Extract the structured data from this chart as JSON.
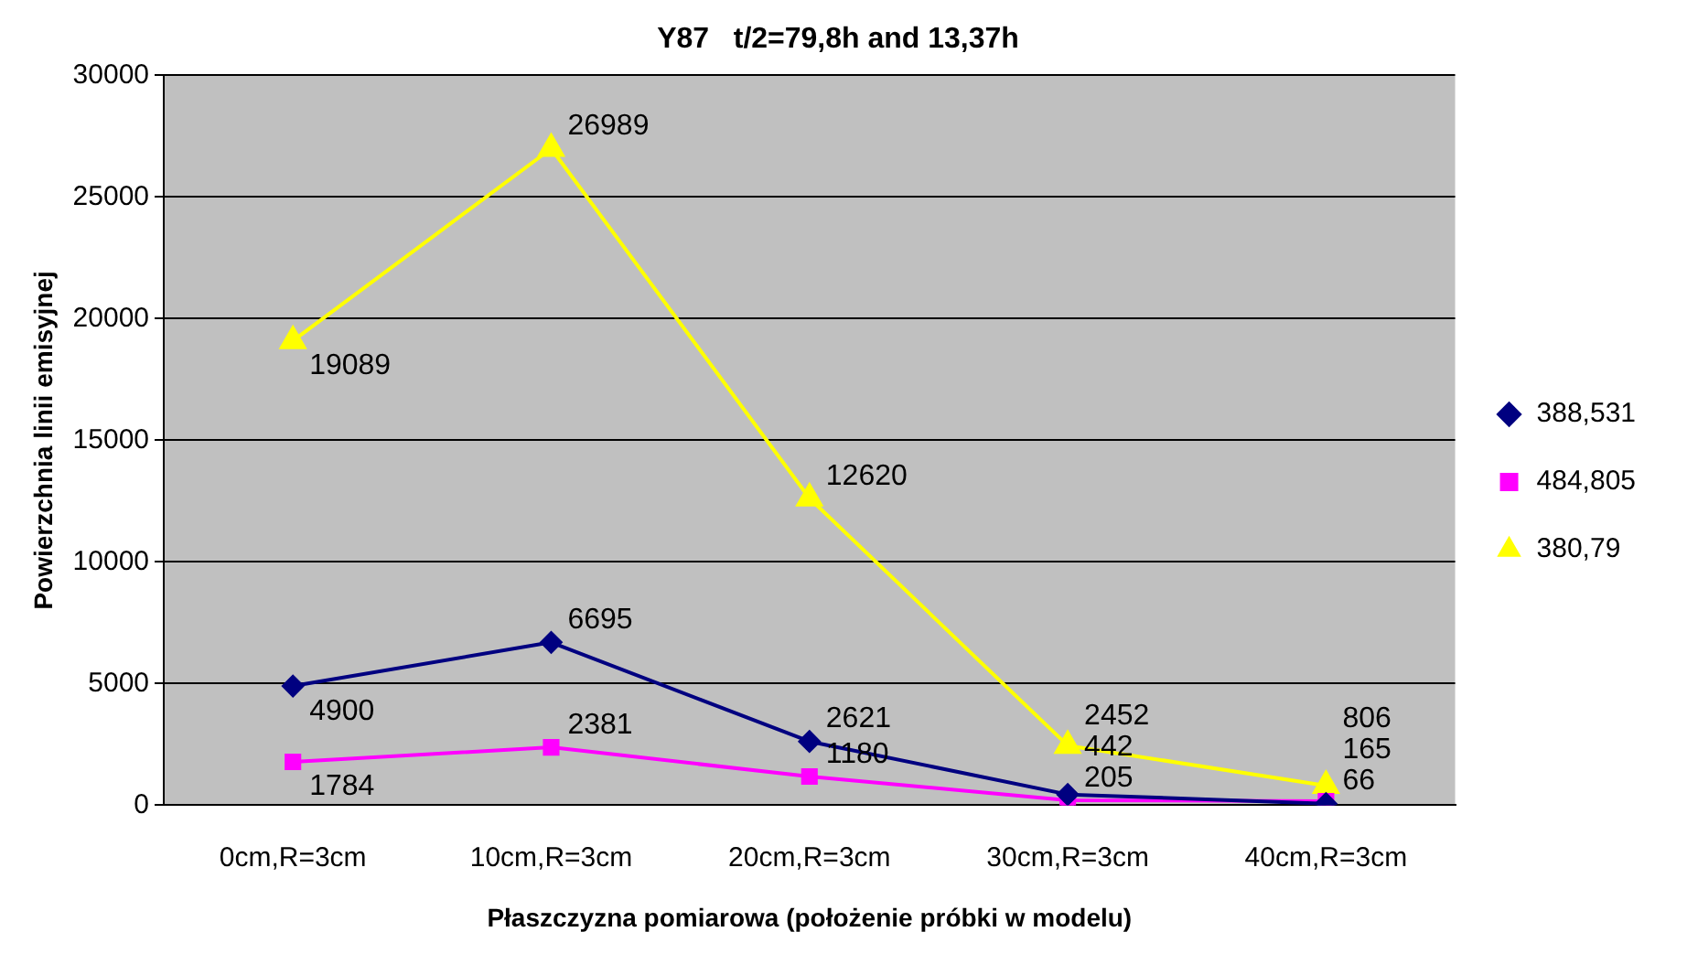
{
  "chart_data": {
    "type": "line",
    "title": "Y87   t/2=79,8h and 13,37h",
    "xlabel": "Płaszczyzna pomiarowa (położenie próbki w modelu)",
    "ylabel": "Powierzchnia linii emisyjnej",
    "categories": [
      "0cm,R=3cm",
      "10cm,R=3cm",
      "20cm,R=3cm",
      "30cm,R=3cm",
      "40cm,R=3cm"
    ],
    "series": [
      {
        "name": "388,531",
        "color": "#000080",
        "marker": "diamond",
        "values": [
          4900,
          6695,
          2621,
          442,
          66
        ]
      },
      {
        "name": "484,805",
        "color": "#ff00ff",
        "marker": "square",
        "values": [
          1784,
          2381,
          1180,
          205,
          165
        ]
      },
      {
        "name": "380,79",
        "color": "#ffff00",
        "marker": "triangle",
        "values": [
          19089,
          26989,
          12620,
          2452,
          806
        ]
      }
    ],
    "ylim": [
      0,
      30000
    ],
    "yticks": [
      0,
      5000,
      10000,
      15000,
      20000,
      25000,
      30000
    ],
    "grid": "y",
    "legend": "right",
    "data_labels": true
  }
}
